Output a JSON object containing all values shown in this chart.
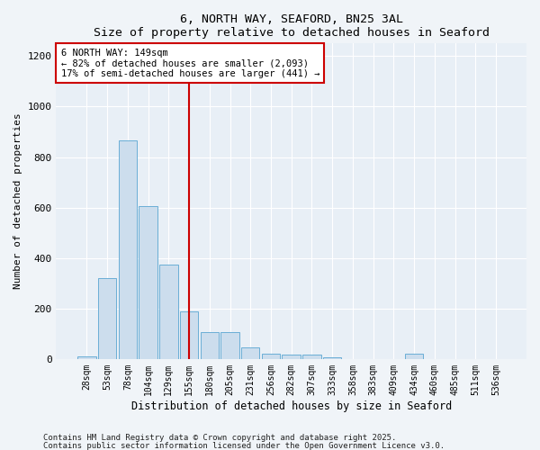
{
  "title1": "6, NORTH WAY, SEAFORD, BN25 3AL",
  "title2": "Size of property relative to detached houses in Seaford",
  "xlabel": "Distribution of detached houses by size in Seaford",
  "ylabel": "Number of detached properties",
  "bar_labels": [
    "28sqm",
    "53sqm",
    "78sqm",
    "104sqm",
    "129sqm",
    "155sqm",
    "180sqm",
    "205sqm",
    "231sqm",
    "256sqm",
    "282sqm",
    "307sqm",
    "333sqm",
    "358sqm",
    "383sqm",
    "409sqm",
    "434sqm",
    "460sqm",
    "485sqm",
    "511sqm",
    "536sqm"
  ],
  "bar_heights": [
    10,
    320,
    865,
    605,
    375,
    190,
    105,
    105,
    47,
    20,
    18,
    18,
    8,
    0,
    0,
    0,
    20,
    0,
    0,
    0,
    0
  ],
  "bar_color": "#ccdded",
  "bar_edge_color": "#6aaed6",
  "background_color": "#e8eff6",
  "fig_background_color": "#f0f4f8",
  "grid_color": "#ffffff",
  "vline_color": "#cc0000",
  "annotation_text": "6 NORTH WAY: 149sqm\n← 82% of detached houses are smaller (2,093)\n17% of semi-detached houses are larger (441) →",
  "annotation_box_color": "#cc0000",
  "ylim": [
    0,
    1250
  ],
  "yticks": [
    0,
    200,
    400,
    600,
    800,
    1000,
    1200
  ],
  "footnote1": "Contains HM Land Registry data © Crown copyright and database right 2025.",
  "footnote2": "Contains public sector information licensed under the Open Government Licence v3.0."
}
